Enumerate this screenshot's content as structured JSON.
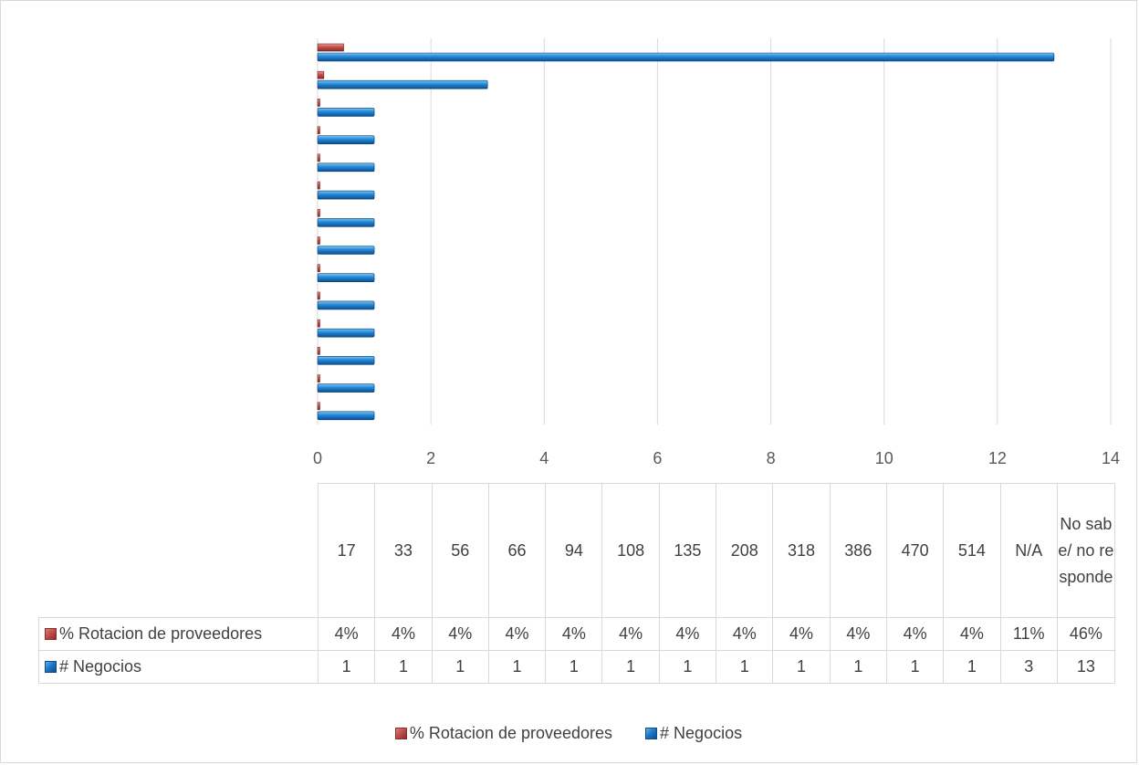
{
  "chart_data": {
    "type": "bar",
    "orientation": "horizontal",
    "categories": [
      "17",
      "33",
      "56",
      "66",
      "94",
      "108",
      "135",
      "208",
      "318",
      "386",
      "470",
      "514",
      "N/A",
      "No sabe/ no responde"
    ],
    "series": [
      {
        "name": "% Rotacion de proveedores",
        "values": [
          0.04,
          0.04,
          0.04,
          0.04,
          0.04,
          0.04,
          0.04,
          0.04,
          0.04,
          0.04,
          0.04,
          0.04,
          0.11,
          0.46
        ],
        "labels": [
          "4%",
          "4%",
          "4%",
          "4%",
          "4%",
          "4%",
          "4%",
          "4%",
          "4%",
          "4%",
          "4%",
          "4%",
          "11%",
          "46%"
        ],
        "color": "#c0504d"
      },
      {
        "name": "# Negocios",
        "values": [
          1,
          1,
          1,
          1,
          1,
          1,
          1,
          1,
          1,
          1,
          1,
          1,
          3,
          13
        ],
        "labels": [
          "1",
          "1",
          "1",
          "1",
          "1",
          "1",
          "1",
          "1",
          "1",
          "1",
          "1",
          "1",
          "3",
          "13"
        ],
        "color": "#1f78c8"
      }
    ],
    "xlim": [
      0,
      14
    ],
    "xticks": [
      "0",
      "2",
      "4",
      "6",
      "8",
      "10",
      "12",
      "14"
    ],
    "grid": "vertical",
    "legend": "bottom",
    "data_table": true
  }
}
